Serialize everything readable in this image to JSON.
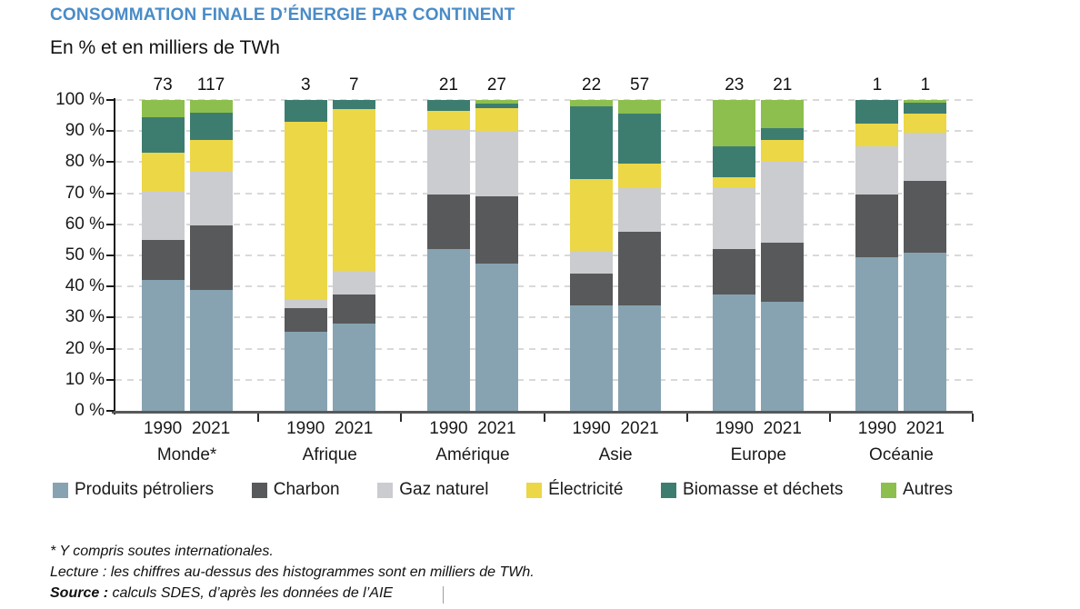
{
  "title": "CONSOMMATION FINALE D’ÉNERGIE PAR CONTINENT",
  "subtitle": "En % et en milliers de TWh",
  "colors": {
    "title_accent": "#4a8cc7",
    "axis": "#1a1a1a",
    "x_axis": "#58595b",
    "gridline": "#d9d9d9"
  },
  "chart_data": {
    "type": "bar",
    "stacked": true,
    "unit": "%",
    "title": "CONSOMMATION FINALE D’ÉNERGIE PAR CONTINENT",
    "subtitle": "En % et en milliers de TWh",
    "ylim": [
      0,
      100
    ],
    "grid": "horizontal dashed every 10%",
    "legend_position": "bottom",
    "y_ticks": [
      "0 %",
      "10 %",
      "20 %",
      "30 %",
      "40 %",
      "50 %",
      "60 %",
      "70 %",
      "80 %",
      "90 %",
      "100 %"
    ],
    "series_names": [
      "Produits pétroliers",
      "Charbon",
      "Gaz naturel",
      "Électricité",
      "Biomasse et déchets",
      "Autres"
    ],
    "series_colors": [
      "#87a3b1",
      "#58595b",
      "#cbccd0",
      "#ecd747",
      "#3d7d70",
      "#8cbf4d"
    ],
    "values_note": "segments are % shares bottom-to-top in series order; totals are milliers de TWh shown above bars",
    "groups": [
      {
        "label": "Monde*",
        "bars": [
          {
            "year": "1990",
            "total_thousand_twh": "73",
            "segments": [
              42,
              13,
              15.5,
              12.5,
              11.5,
              5.5
            ]
          },
          {
            "year": "2021",
            "total_thousand_twh": "117",
            "segments": [
              39,
              20.5,
              17.5,
              10,
              9,
              4
            ]
          }
        ]
      },
      {
        "label": "Afrique",
        "bars": [
          {
            "year": "1990",
            "total_thousand_twh": "3",
            "segments": [
              25.5,
              7.5,
              3,
              57,
              7,
              0
            ]
          },
          {
            "year": "2021",
            "total_thousand_twh": "7",
            "segments": [
              28,
              9.5,
              7.5,
              52,
              3,
              0
            ]
          }
        ]
      },
      {
        "label": "Amérique",
        "bars": [
          {
            "year": "1990",
            "total_thousand_twh": "21",
            "segments": [
              52,
              17.5,
              21,
              6,
              3.5,
              0
            ]
          },
          {
            "year": "2021",
            "total_thousand_twh": "27",
            "segments": [
              47.5,
              21.5,
              21,
              7.5,
              1.3,
              1.2
            ]
          }
        ]
      },
      {
        "label": "Asie",
        "bars": [
          {
            "year": "1990",
            "total_thousand_twh": "22",
            "segments": [
              34,
              10,
              7.5,
              23,
              23.5,
              2
            ]
          },
          {
            "year": "2021",
            "total_thousand_twh": "57",
            "segments": [
              34,
              23.5,
              14,
              8,
              16,
              4.5
            ]
          }
        ]
      },
      {
        "label": "Europe",
        "bars": [
          {
            "year": "1990",
            "total_thousand_twh": "23",
            "segments": [
              37.5,
              14.5,
              20,
              3,
              10,
              15
            ]
          },
          {
            "year": "2021",
            "total_thousand_twh": "21",
            "segments": [
              35,
              19,
              26,
              7,
              4,
              9
            ]
          }
        ]
      },
      {
        "label": "Océanie",
        "bars": [
          {
            "year": "1990",
            "total_thousand_twh": "1",
            "segments": [
              49.5,
              20,
              15.5,
              7.5,
              7.5,
              0
            ]
          },
          {
            "year": "2021",
            "total_thousand_twh": "1",
            "segments": [
              51,
              23,
              15.5,
              6,
              3.5,
              1
            ]
          }
        ]
      }
    ]
  },
  "legend": {
    "items": [
      {
        "label": "Produits pétroliers",
        "color": "#87a3b1"
      },
      {
        "label": "Charbon",
        "color": "#58595b"
      },
      {
        "label": "Gaz naturel",
        "color": "#cbccd0"
      },
      {
        "label": "Électricité",
        "color": "#ecd747"
      },
      {
        "label": "Biomasse et déchets",
        "color": "#3d7d70"
      },
      {
        "label": "Autres",
        "color": "#8cbf4d"
      }
    ]
  },
  "footnotes": {
    "star": "* Y compris soutes internationales.",
    "lecture": "Lecture : les chiffres au-dessus des histogrammes sont en milliers de TWh.",
    "source_label": "Source :",
    "source_text": " calculs SDES, d’après les données de l’AIE"
  }
}
